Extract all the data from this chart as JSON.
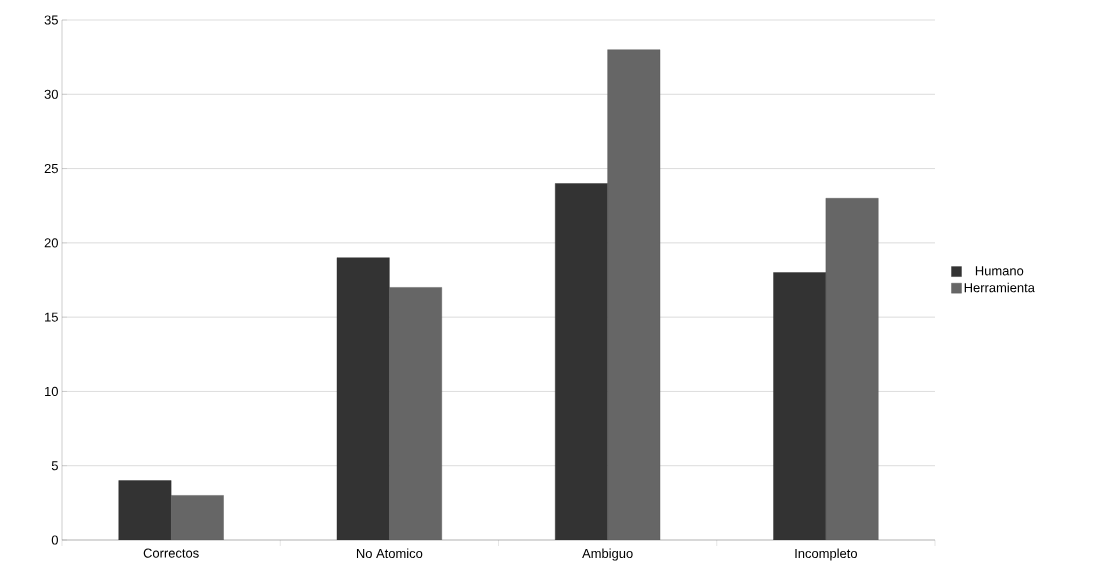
{
  "chart_data": {
    "type": "bar",
    "categories": [
      "Correctos",
      "No Atomico",
      "Ambiguo",
      "Incompleto"
    ],
    "series": [
      {
        "name": "Humano",
        "color": "#333333",
        "values": [
          4,
          19,
          24,
          18
        ]
      },
      {
        "name": "Herramienta",
        "color": "#666666",
        "values": [
          3,
          17,
          33,
          23
        ]
      }
    ],
    "ylim": [
      0,
      35
    ],
    "yticks": [
      0,
      5,
      10,
      15,
      20,
      25,
      30,
      35
    ],
    "grid": "y",
    "legend": "right"
  }
}
